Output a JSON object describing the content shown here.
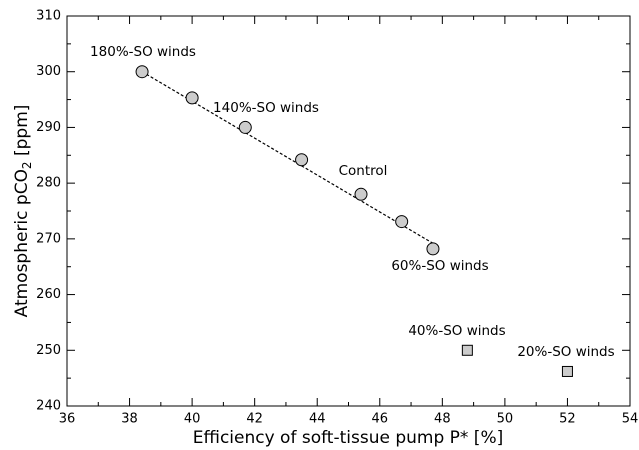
{
  "chart_data": {
    "type": "scatter",
    "xlabel": "Efficiency of soft-tissue pump P* [%]",
    "ylabel": [
      "Atmospheric pCO",
      "2",
      " [ppm]"
    ],
    "xlim": [
      36,
      54
    ],
    "ylim": [
      240,
      310
    ],
    "xticks": [
      36,
      38,
      40,
      42,
      44,
      46,
      48,
      50,
      52,
      54
    ],
    "yticks": [
      240,
      250,
      260,
      270,
      280,
      290,
      300,
      310
    ],
    "xminor_ticks": [
      37,
      39,
      41,
      43,
      45,
      47,
      49,
      51,
      53
    ],
    "yminor_ticks": [
      245,
      255,
      265,
      275,
      285,
      295,
      305
    ],
    "series": [
      {
        "marker": "circle",
        "color": "#cccccc",
        "x": [
          38.4,
          40,
          41.7,
          43.5,
          45.4,
          46.7,
          47.7
        ],
        "values": [
          300,
          295.3,
          290,
          284.2,
          278,
          273.1,
          268.2
        ]
      },
      {
        "marker": "square",
        "color": "#cccccc",
        "x": [
          48.8,
          52
        ],
        "values": [
          250,
          246.2
        ]
      }
    ],
    "fit_line": {
      "x": [
        38.4,
        47.7
      ],
      "y": [
        300,
        269.2
      ]
    },
    "annotations": [
      "180%-SO winds",
      "140%-SO winds",
      "Control",
      "60%-SO winds",
      "40%-SO winds",
      "20%-SO winds"
    ]
  }
}
